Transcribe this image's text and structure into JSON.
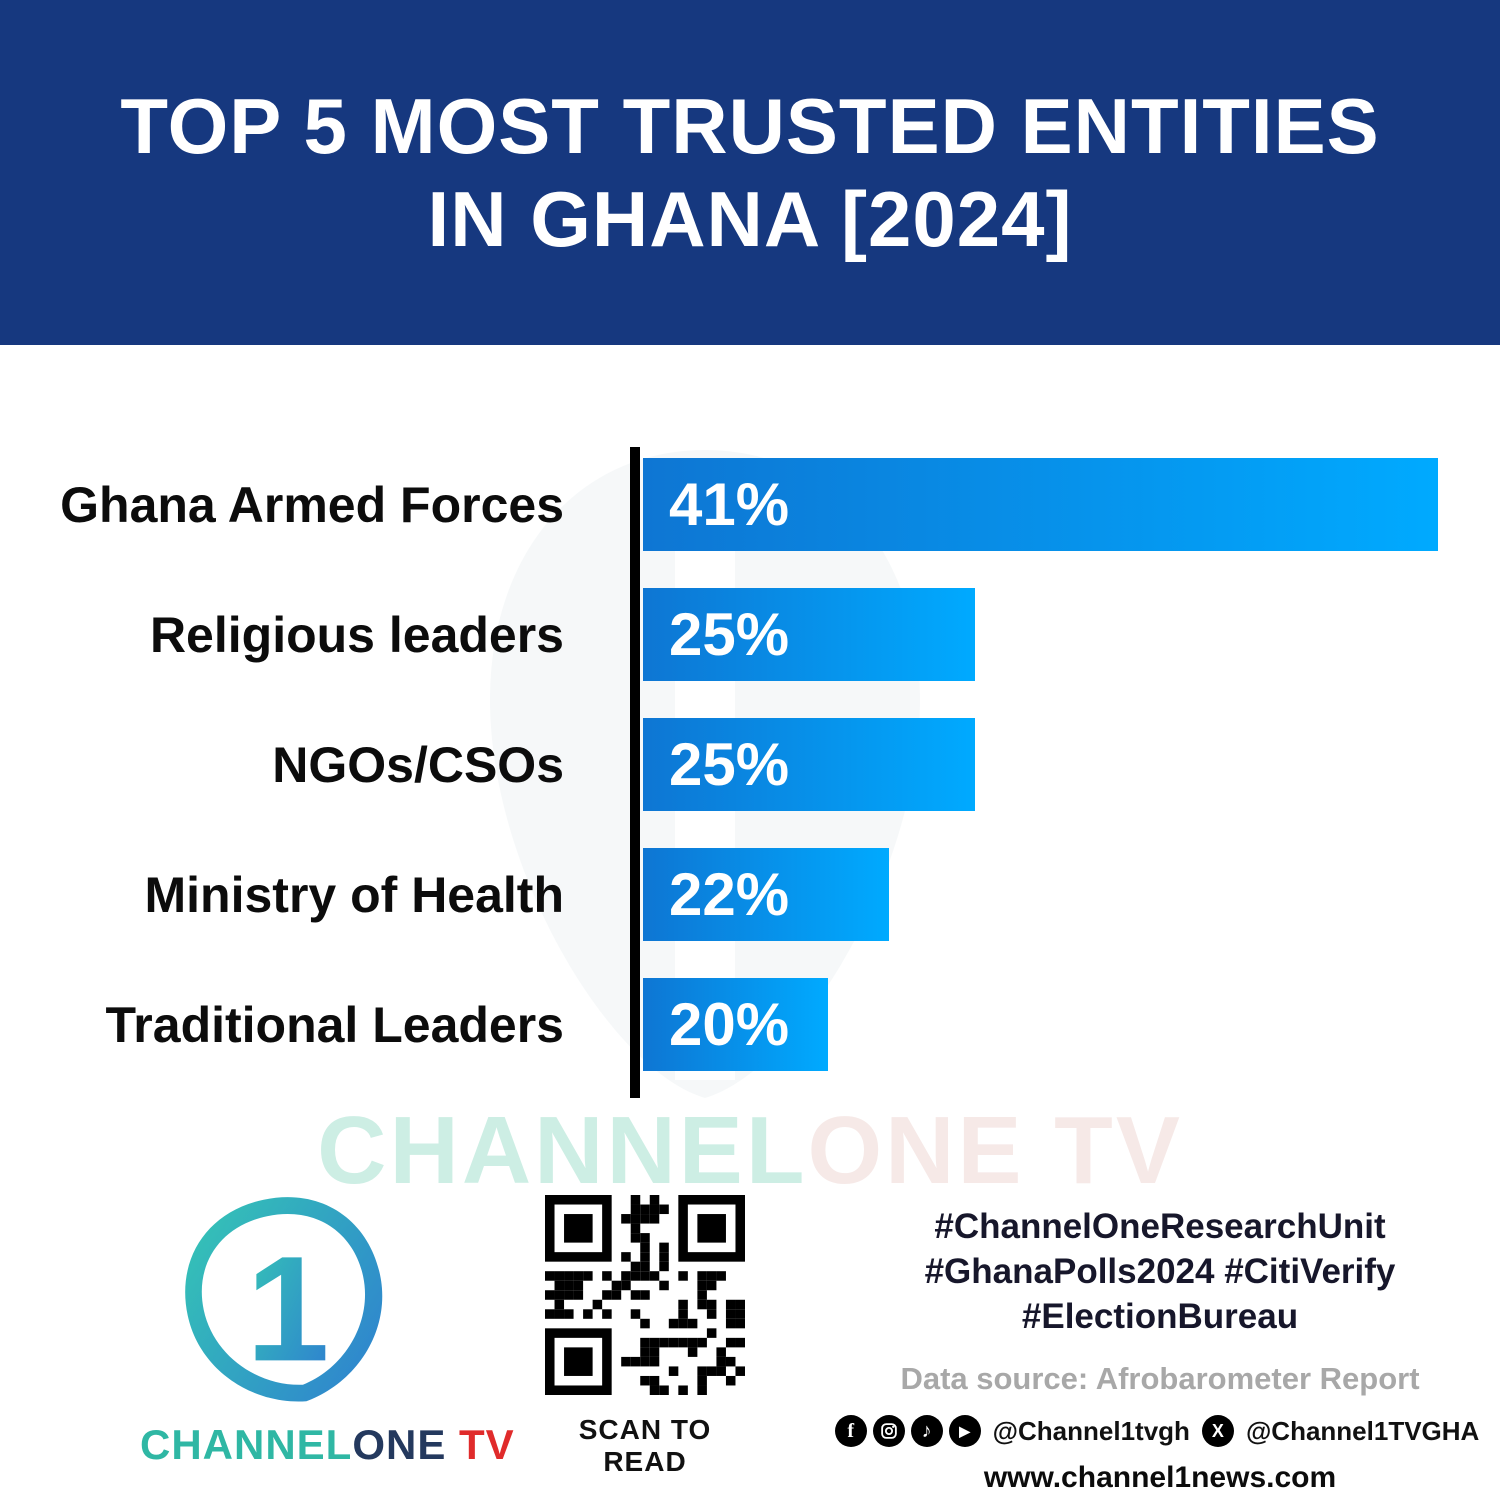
{
  "header": {
    "title_line1": "TOP 5 MOST TRUSTED ENTITIES",
    "title_line2": "IN GHANA [2024]"
  },
  "chart_data": {
    "type": "bar",
    "orientation": "horizontal",
    "title": "TOP 5 MOST TRUSTED ENTITIES IN GHANA [2024]",
    "categories": [
      "Ghana Armed Forces",
      "Religious leaders",
      "NGOs/CSOs",
      "Ministry of Health",
      "Traditional Leaders"
    ],
    "values": [
      41,
      25,
      25,
      22,
      20
    ],
    "value_labels": [
      "41%",
      "25%",
      "25%",
      "22%",
      "20%"
    ],
    "xlim": [
      0,
      41
    ],
    "grid": false,
    "legend": false,
    "display_widths_pct": [
      97,
      40.5,
      40.5,
      30,
      22.5
    ]
  },
  "colors": {
    "header_bg": "#16387f",
    "bar_start": "#0e76d3",
    "bar_end": "#00aaff",
    "axis": "#000000"
  },
  "watermark": {
    "part1": "CHANNEL",
    "part2": "ONE TV"
  },
  "footer": {
    "logo": {
      "number": "1",
      "wordmark_channel": "CHANNEL",
      "wordmark_one": "ONE",
      "wordmark_tv": " TV"
    },
    "qr_caption": "SCAN TO READ",
    "hashtags_line1": "#ChannelOneResearchUnit",
    "hashtags_line2": "#GhanaPolls2024 #CitiVerify",
    "hashtags_line3": "#ElectionBureau",
    "data_source": "Data source: Afrobarometer Report",
    "social": {
      "facebook_glyph": "f",
      "tiktok_glyph": "♪",
      "youtube_glyph": "▶",
      "x_glyph": "X",
      "handle1": "@Channel1tvgh",
      "handle2": "@Channel1TVGHA"
    },
    "website": "www.channel1news.com"
  }
}
